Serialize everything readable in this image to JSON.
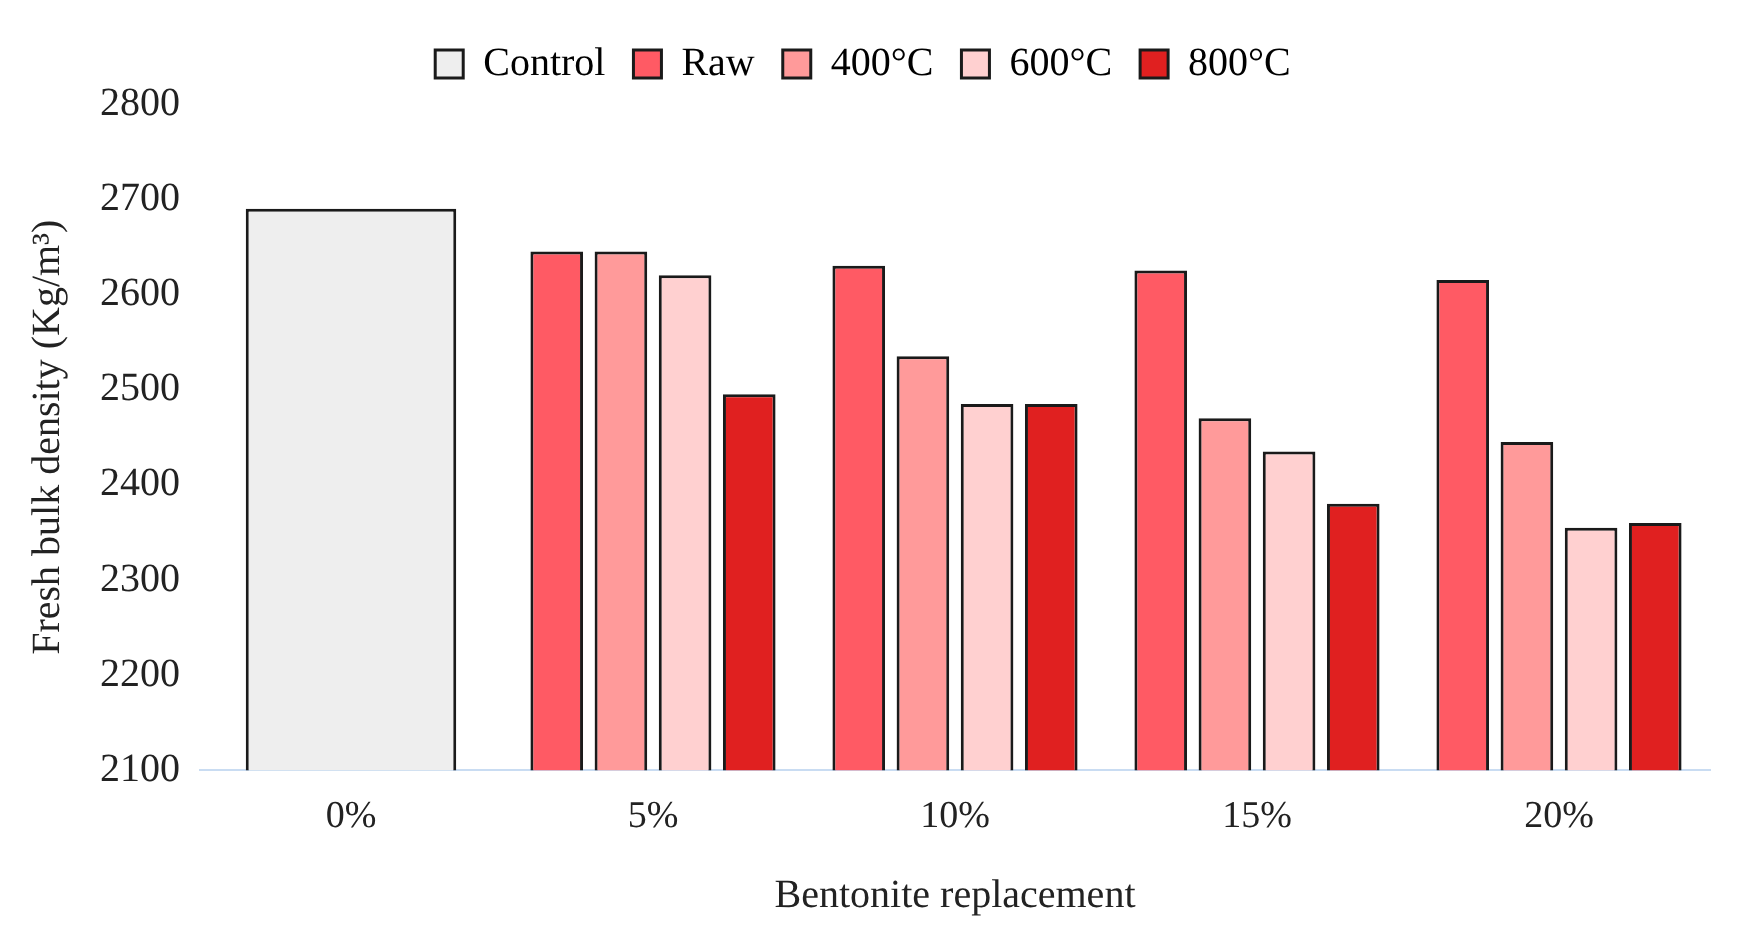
{
  "chart_data": {
    "type": "bar",
    "xlabel": "Bentonite replacement",
    "ylabel": "Fresh bulk density (Kg/m³)",
    "categories": [
      "0%",
      "5%",
      "10%",
      "15%",
      "20%"
    ],
    "series": [
      {
        "name": "Control",
        "color": "#eeeeee",
        "values": [
          2690,
          null,
          null,
          null,
          null
        ]
      },
      {
        "name": "Raw",
        "color": "#ff5a64",
        "values": [
          null,
          2645,
          2630,
          2625,
          2615
        ]
      },
      {
        "name": "400°C",
        "color": "#ff9a9a",
        "values": [
          null,
          2645,
          2535,
          2470,
          2445
        ]
      },
      {
        "name": "600°C",
        "color": "#ffd0d0",
        "values": [
          null,
          2620,
          2485,
          2435,
          2355
        ]
      },
      {
        "name": "800°C",
        "color": "#e02020",
        "values": [
          null,
          2495,
          2485,
          2380,
          2360
        ]
      }
    ],
    "ylim": [
      2100,
      2800
    ],
    "yticks": [
      2100,
      2200,
      2300,
      2400,
      2500,
      2600,
      2700,
      2800
    ],
    "grid": false,
    "legend": "top"
  }
}
